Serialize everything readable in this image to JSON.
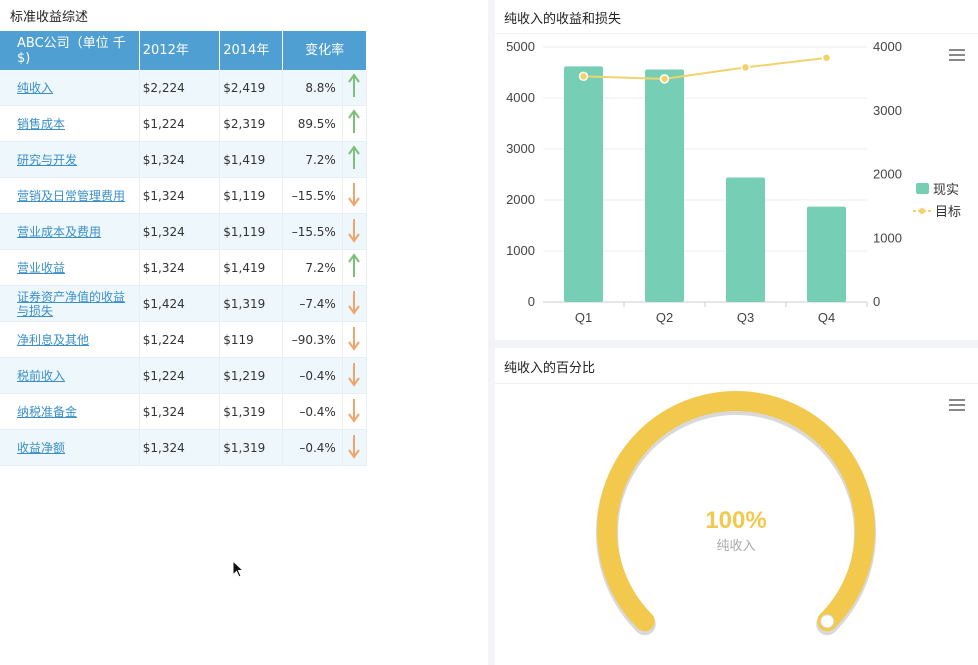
{
  "left_panel": {
    "title": "标准收益综述",
    "table": {
      "headers": [
        "ABC公司（单位 千$)",
        "2012年",
        "2014年",
        "变化率"
      ],
      "rows": [
        {
          "name": "纯收入",
          "y2012": "$2,224",
          "y2014": "$2,419",
          "change": "8.8%",
          "trend": "up"
        },
        {
          "name": "销售成本",
          "y2012": "$1,224",
          "y2014": "$2,319",
          "change": "89.5%",
          "trend": "up"
        },
        {
          "name": "研究与开发",
          "y2012": "$1,324",
          "y2014": "$1,419",
          "change": "7.2%",
          "trend": "up"
        },
        {
          "name": "营销及日常管理费用",
          "y2012": "$1,324",
          "y2014": "$1,119",
          "change": "–15.5%",
          "trend": "down"
        },
        {
          "name": "营业成本及费用",
          "y2012": "$1,324",
          "y2014": "$1,119",
          "change": "–15.5%",
          "trend": "down"
        },
        {
          "name": "营业收益",
          "y2012": "$1,324",
          "y2014": "$1,419",
          "change": "7.2%",
          "trend": "up"
        },
        {
          "name": "证券资产净值的收益与损失",
          "y2012": "$1,424",
          "y2014": "$1,319",
          "change": "–7.4%",
          "trend": "down"
        },
        {
          "name": "净利息及其他",
          "y2012": "$1,224",
          "y2014": "$119",
          "change": "–90.3%",
          "trend": "down"
        },
        {
          "name": "税前收入",
          "y2012": "$1,224",
          "y2014": "$1,219",
          "change": "–0.4%",
          "trend": "down"
        },
        {
          "name": "纳税准备金",
          "y2012": "$1,324",
          "y2014": "$1,319",
          "change": "–0.4%",
          "trend": "down"
        },
        {
          "name": "收益净额",
          "y2012": "$1,324",
          "y2014": "$1,319",
          "change": "–0.4%",
          "trend": "down"
        }
      ]
    }
  },
  "colors": {
    "header_bg": "#4f9fd3",
    "up_arrow": "#7dbf7a",
    "down_arrow": "#f0a66b",
    "bar": "#76cfb4",
    "line": "#f2d36b",
    "gauge": "#f2c94c"
  },
  "chart_data": [
    {
      "type": "bar",
      "title": "纯收入的收益和损失",
      "categories": [
        "Q1",
        "Q2",
        "Q3",
        "Q4"
      ],
      "series": [
        {
          "name": "现实",
          "type": "bar",
          "axis": "left",
          "values": [
            4620,
            4560,
            2440,
            1870
          ]
        },
        {
          "name": "目标",
          "type": "line",
          "axis": "right",
          "values": [
            3540,
            3500,
            3680,
            3830
          ]
        }
      ],
      "y_left_ticks": [
        0,
        1000,
        2000,
        3000,
        4000,
        5000
      ],
      "y_right_ticks": [
        0,
        1000,
        2000,
        3000,
        4000
      ],
      "ylim_left": [
        0,
        5000
      ],
      "ylim_right": [
        0,
        4000
      ],
      "legend": "right",
      "grid": true
    },
    {
      "type": "gauge",
      "title": "纯收入的百分比",
      "value_label": "100%",
      "sub_label": "纯收入",
      "value": 1.0
    }
  ]
}
